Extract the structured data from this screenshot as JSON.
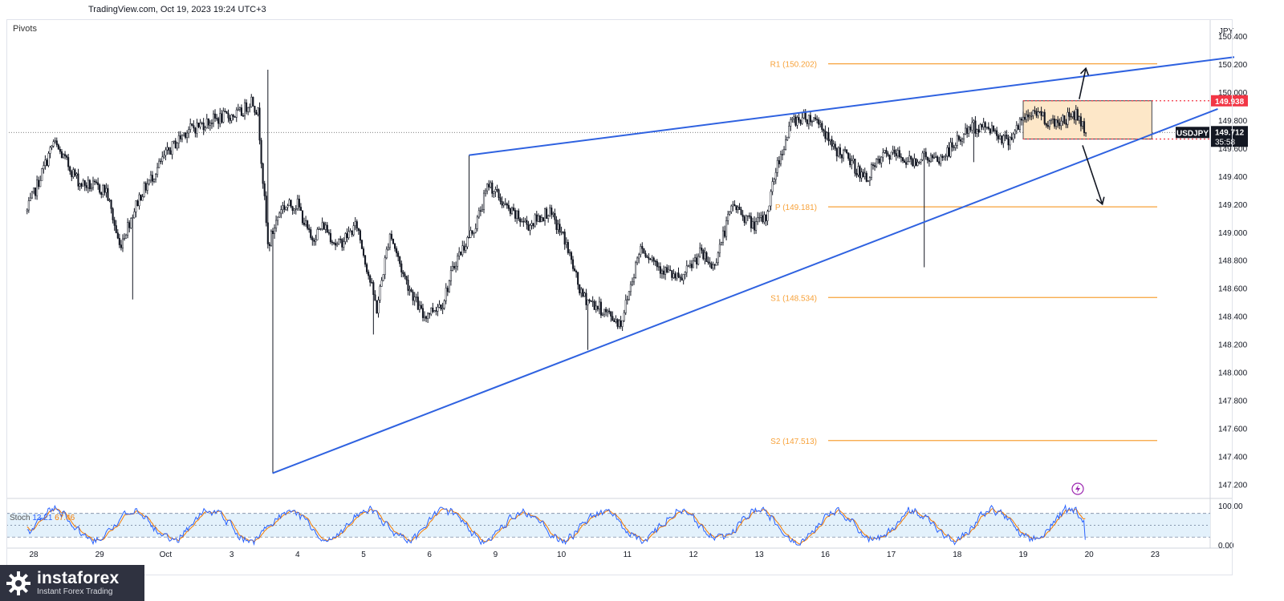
{
  "header": {
    "source": "TradingView.com, Oct 19, 2023 19:24 UTC+3"
  },
  "indicator_label": "Pivots",
  "stoch_legend": {
    "name": "Stoch",
    "k": "13.21",
    "d": "67.46"
  },
  "logo": {
    "brand": "instaforex",
    "tagline": "Instant Forex Trading"
  },
  "colors": {
    "up_candle": "#131722",
    "trendline": "#2f62e0",
    "pivot": "#f7a23a",
    "resistance": "#f23645",
    "box_fill": "#fde7c8",
    "stoch_k": "#2962ff",
    "stoch_d": "#f57c00"
  },
  "chart_data": [
    {
      "type": "candlestick",
      "symbol": "USDJPY",
      "currency": "JPY",
      "ylim": [
        147.1,
        150.52
      ],
      "y_ticks": [
        "150.400",
        "150.200",
        "150.000",
        "149.800",
        "149.600",
        "149.400",
        "149.200",
        "149.000",
        "148.800",
        "148.600",
        "148.400",
        "148.200",
        "148.000",
        "147.800",
        "147.600",
        "147.400",
        "147.200"
      ],
      "x_ticks": [
        "28",
        "29",
        "Oct",
        "3",
        "4",
        "5",
        "6",
        "9",
        "10",
        "11",
        "12",
        "13",
        "16",
        "17",
        "18",
        "19",
        "20",
        "23"
      ],
      "x_tick_index": [
        0,
        1,
        2,
        3,
        4,
        5,
        6,
        7,
        8,
        9,
        10,
        11,
        12,
        13,
        14,
        15,
        16,
        17
      ],
      "anchors": [
        {
          "x": -0.1,
          "y": 149.15
        },
        {
          "x": 0.3,
          "y": 149.64
        },
        {
          "x": 0.7,
          "y": 149.35
        },
        {
          "x": 1.1,
          "y": 149.3
        },
        {
          "x": 1.3,
          "y": 148.9
        },
        {
          "x": 1.6,
          "y": 149.25
        },
        {
          "x": 2.0,
          "y": 149.55
        },
        {
          "x": 2.3,
          "y": 149.72
        },
        {
          "x": 2.7,
          "y": 149.8
        },
        {
          "x": 3.15,
          "y": 149.85
        },
        {
          "x": 3.3,
          "y": 149.95
        },
        {
          "x": 3.4,
          "y": 149.85
        },
        {
          "x": 3.55,
          "y": 148.9
        },
        {
          "x": 3.75,
          "y": 149.18
        },
        {
          "x": 4.0,
          "y": 149.2
        },
        {
          "x": 4.2,
          "y": 148.95
        },
        {
          "x": 4.4,
          "y": 149.05
        },
        {
          "x": 4.6,
          "y": 148.9
        },
        {
          "x": 4.9,
          "y": 149.05
        },
        {
          "x": 5.2,
          "y": 148.45
        },
        {
          "x": 5.4,
          "y": 149.0
        },
        {
          "x": 5.6,
          "y": 148.7
        },
        {
          "x": 5.9,
          "y": 148.4
        },
        {
          "x": 6.2,
          "y": 148.5
        },
        {
          "x": 6.4,
          "y": 148.8
        },
        {
          "x": 6.7,
          "y": 149.05
        },
        {
          "x": 6.9,
          "y": 149.35
        },
        {
          "x": 7.2,
          "y": 149.15
        },
        {
          "x": 7.5,
          "y": 149.05
        },
        {
          "x": 7.8,
          "y": 149.15
        },
        {
          "x": 8.05,
          "y": 148.95
        },
        {
          "x": 8.3,
          "y": 148.55
        },
        {
          "x": 8.6,
          "y": 148.45
        },
        {
          "x": 8.9,
          "y": 148.35
        },
        {
          "x": 9.2,
          "y": 148.9
        },
        {
          "x": 9.5,
          "y": 148.75
        },
        {
          "x": 9.8,
          "y": 148.65
        },
        {
          "x": 10.1,
          "y": 148.85
        },
        {
          "x": 10.3,
          "y": 148.75
        },
        {
          "x": 10.6,
          "y": 149.2
        },
        {
          "x": 10.9,
          "y": 149.05
        },
        {
          "x": 11.1,
          "y": 149.1
        },
        {
          "x": 11.25,
          "y": 149.45
        },
        {
          "x": 11.5,
          "y": 149.8
        },
        {
          "x": 11.7,
          "y": 149.82
        },
        {
          "x": 11.9,
          "y": 149.8
        },
        {
          "x": 12.1,
          "y": 149.6
        },
        {
          "x": 12.3,
          "y": 149.55
        },
        {
          "x": 12.6,
          "y": 149.38
        },
        {
          "x": 12.9,
          "y": 149.55
        },
        {
          "x": 13.1,
          "y": 149.55
        },
        {
          "x": 13.3,
          "y": 149.5
        },
        {
          "x": 13.5,
          "y": 149.55
        },
        {
          "x": 13.7,
          "y": 149.5
        },
        {
          "x": 13.95,
          "y": 149.62
        },
        {
          "x": 14.2,
          "y": 149.75
        },
        {
          "x": 14.5,
          "y": 149.75
        },
        {
          "x": 14.75,
          "y": 149.65
        },
        {
          "x": 15.0,
          "y": 149.8
        },
        {
          "x": 15.2,
          "y": 149.87
        },
        {
          "x": 15.4,
          "y": 149.78
        },
        {
          "x": 15.6,
          "y": 149.8
        },
        {
          "x": 15.8,
          "y": 149.85
        },
        {
          "x": 15.95,
          "y": 149.71
        }
      ],
      "spikes": [
        {
          "x": 1.5,
          "low": 148.52
        },
        {
          "x": 3.55,
          "high": 150.16
        },
        {
          "x": 3.62,
          "low": 147.28
        },
        {
          "x": 5.15,
          "low": 148.27
        },
        {
          "x": 6.6,
          "high": 149.55
        },
        {
          "x": 8.4,
          "low": 148.16
        },
        {
          "x": 13.5,
          "low": 148.75
        },
        {
          "x": 14.25,
          "low": 149.5
        }
      ],
      "last_price": "149.712",
      "countdown": "35:58",
      "price_labels": [
        {
          "value": "149.938",
          "price": 149.938,
          "color": "#f23645"
        },
        {
          "value": "149.665",
          "price": 149.665,
          "color": "#f23645"
        }
      ],
      "pivots": [
        {
          "label": "R1 (150.202)",
          "price": 150.202
        },
        {
          "label": "P (149.181)",
          "price": 149.181
        },
        {
          "label": "S1 (148.534)",
          "price": 148.534
        },
        {
          "label": "S2 (147.513)",
          "price": 147.513
        }
      ],
      "trendlines": [
        {
          "x1": 6.6,
          "y1": 149.55,
          "x2": 18.2,
          "y2": 150.25
        },
        {
          "x1": 3.62,
          "y1": 147.28,
          "x2": 17.95,
          "y2": 149.88
        }
      ],
      "range_box": {
        "x1": 15.0,
        "x2": 16.95,
        "high": 149.938,
        "low": 149.665
      },
      "arrows": [
        {
          "x1": 15.85,
          "y1": 149.95,
          "x2": 15.95,
          "y2": 150.17
        },
        {
          "x1": 15.9,
          "y1": 149.62,
          "x2": 16.2,
          "y2": 149.2
        }
      ]
    },
    {
      "type": "line",
      "title": "Stoch",
      "ylim": [
        -8,
        118
      ],
      "y_ticks": [
        "100.00",
        "0.00"
      ],
      "bands": [
        80,
        50,
        20
      ],
      "series": [
        {
          "name": "K",
          "color": "#2962ff"
        },
        {
          "name": "D",
          "color": "#f57c00"
        }
      ],
      "last": {
        "k": 13.21,
        "d": 67.46
      }
    }
  ]
}
